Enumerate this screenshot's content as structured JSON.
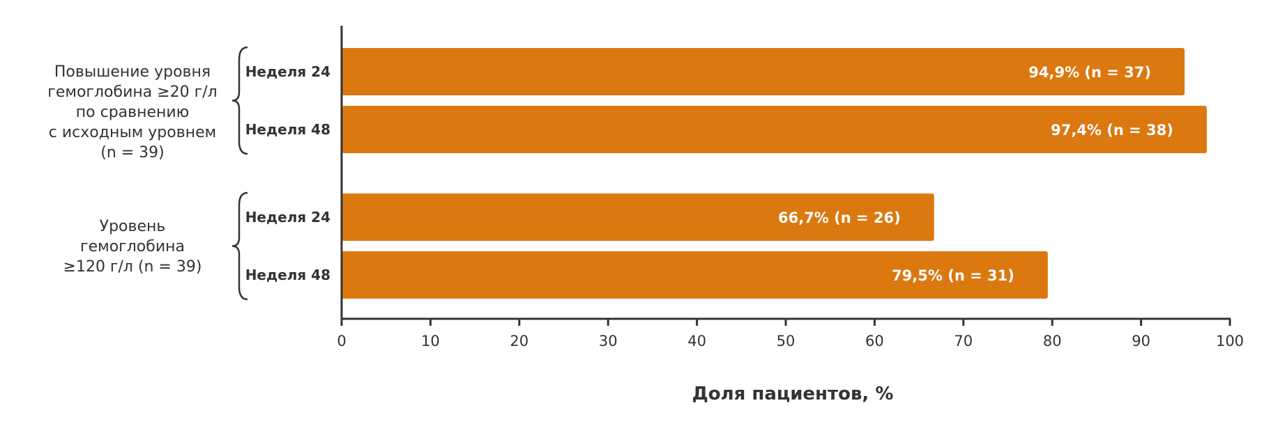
{
  "chart_data": {
    "type": "bar",
    "orientation": "horizontal",
    "xlabel": "Доля пациентов, %",
    "xlim": [
      0,
      100
    ],
    "x_ticks": [
      "0",
      "10",
      "20",
      "30",
      "40",
      "50",
      "60",
      "70",
      "80",
      "90",
      "100"
    ],
    "grid": false,
    "bar_color": "#DB7810",
    "groups": [
      {
        "label_lines": [
          "Повышение уровня",
          "гемоглобина ≥20 г/л",
          "по сравнению",
          "с исходным уровнем",
          "(n = 39)"
        ],
        "bars": [
          {
            "category": "Неделя 24",
            "value": 94.9,
            "label": "94,9% (n = 37)"
          },
          {
            "category": "Неделя 48",
            "value": 97.4,
            "label": "97,4% (n = 38)"
          }
        ]
      },
      {
        "label_lines": [
          "Уровень",
          "гемоглобина",
          "≥120 г/л  (n = 39)"
        ],
        "bars": [
          {
            "category": "Неделя 24",
            "value": 66.7,
            "label": "66,7% (n = 26)"
          },
          {
            "category": "Неделя 48",
            "value": 79.5,
            "label": "79,5% (n = 31)"
          }
        ]
      }
    ]
  }
}
